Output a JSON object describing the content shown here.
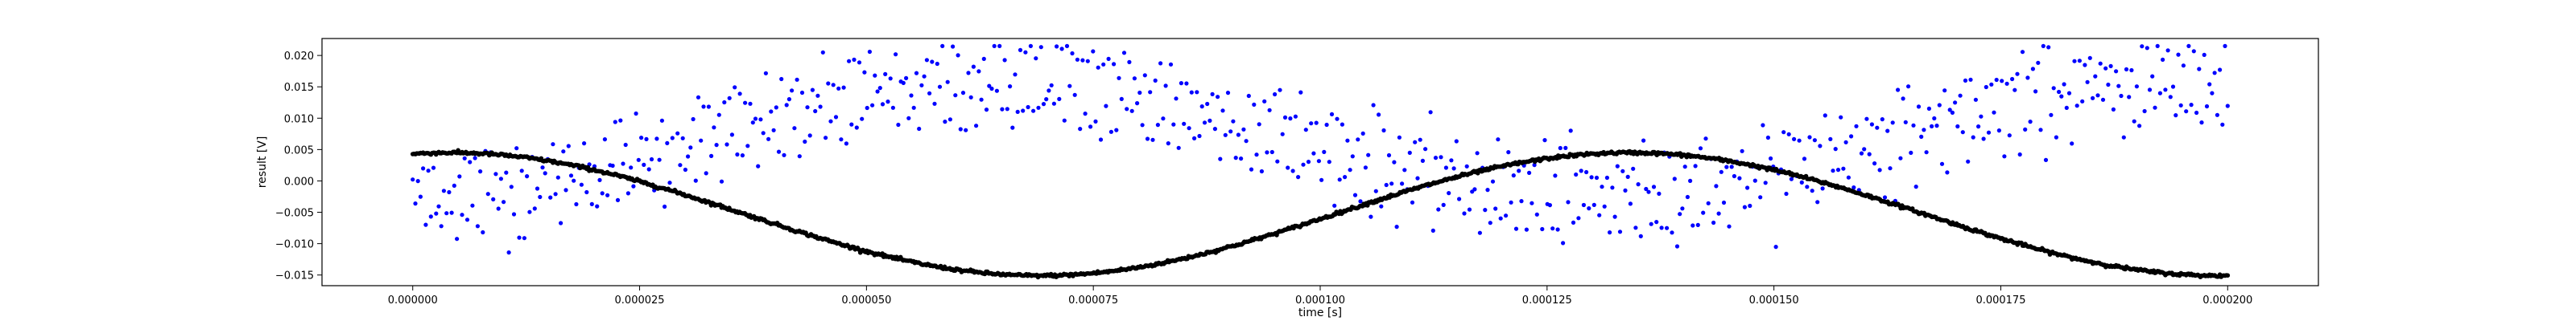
{
  "chart_data": {
    "type": "scatter",
    "xlabel": "time [s]",
    "ylabel": "result [V]",
    "xlim": [
      -1e-05,
      0.00021
    ],
    "ylim": [
      -0.0167,
      0.0227
    ],
    "grid": false,
    "xticks": [
      "0.000000",
      "0.000025",
      "0.000050",
      "0.000075",
      "0.000100",
      "0.000125",
      "0.000150",
      "0.000175",
      "0.000200"
    ],
    "xtick_values": [
      0,
      2.5e-05,
      5e-05,
      7.5e-05,
      0.0001,
      0.000125,
      0.00015,
      0.000175,
      0.0002
    ],
    "yticks": [
      "−0.015",
      "−0.010",
      "−0.005",
      "0.000",
      "0.005",
      "0.010",
      "0.015",
      "0.020"
    ],
    "ytick_values": [
      -0.015,
      -0.01,
      -0.005,
      0,
      0.005,
      0.01,
      0.015,
      0.02
    ],
    "series": [
      {
        "color": "#0000ff",
        "marker": "dot",
        "x_range": [
          0,
          0.0002
        ],
        "points": 700,
        "pattern": "two noisy sinusoidal bands",
        "band_centers_v": [
          0.01,
          0.003
        ],
        "band_amplitude_v": 0.009,
        "band_period_s": 0.00013,
        "band_peak_s": 6.5e-05,
        "noise_v": 0.0025,
        "min_v": -0.0138,
        "max_v": 0.0215
      },
      {
        "color": "#000000",
        "marker": "dense dots",
        "x_range": [
          0,
          0.0002
        ],
        "points": 1400,
        "pattern": "sinusoid",
        "center_v": -0.0053,
        "amplitude_v": 0.0098,
        "period_s": 0.00013,
        "peak_s": 4.1e-06,
        "min_v": -0.0152,
        "max_v": 0.0045
      }
    ]
  }
}
